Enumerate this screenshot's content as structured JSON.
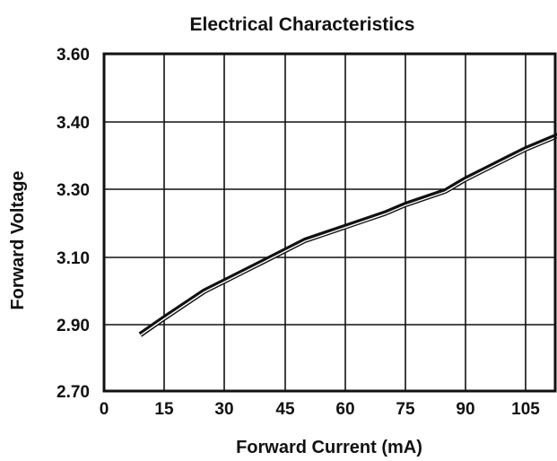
{
  "chart_data": {
    "type": "line",
    "title": "Electrical Characteristics",
    "xlabel": "Forward Current (mA)",
    "ylabel": "Forward Voltage",
    "x_ticks": [
      "0",
      "15",
      "30",
      "45",
      "60",
      "75",
      "90",
      "105"
    ],
    "y_ticks": [
      "2.70",
      "2.90",
      "3.10",
      "3.30",
      "3.40",
      "3.60"
    ],
    "grid": true,
    "legend": "none",
    "series": [
      {
        "x": [
          9,
          15,
          20,
          25,
          30,
          35,
          40,
          45,
          50,
          55,
          60,
          65,
          70,
          75,
          80,
          85,
          90,
          95,
          100,
          105,
          113
        ],
        "y": [
          2.87,
          2.92,
          2.96,
          3.0,
          3.03,
          3.06,
          3.09,
          3.12,
          3.15,
          3.17,
          3.19,
          3.21,
          3.23,
          3.255,
          3.275,
          3.295,
          3.315,
          3.33,
          3.345,
          3.36,
          3.38
        ]
      }
    ],
    "colors": {
      "line": "#111111",
      "frame": "#111111",
      "background": "#ffffff"
    }
  }
}
